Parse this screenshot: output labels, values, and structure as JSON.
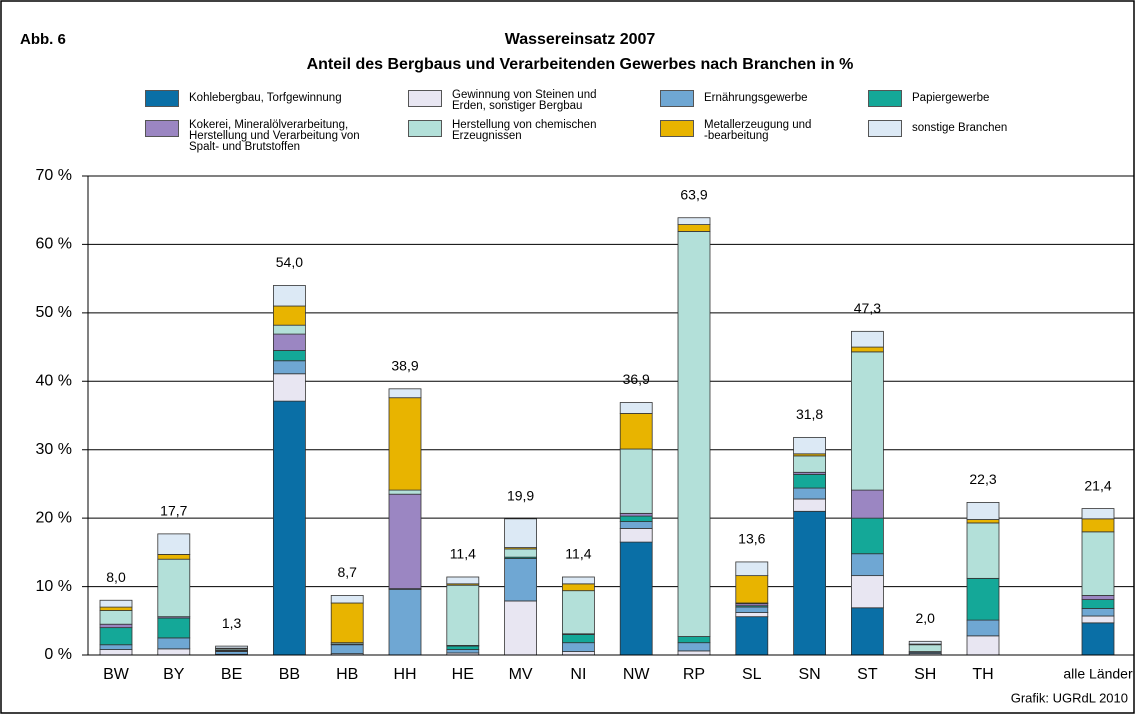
{
  "chart_data": {
    "type": "stacked_bar",
    "figure_label": "Abb. 6",
    "title": "Wassereinsatz 2007",
    "subtitle": "Anteil des Bergbaus und Verarbeitenden Gewerbes nach Branchen in %",
    "source": "Grafik: UGRdL 2010",
    "categories": [
      "BW",
      "BY",
      "BE",
      "BB",
      "HB",
      "HH",
      "HE",
      "MV",
      "NI",
      "NW",
      "RP",
      "SL",
      "SN",
      "ST",
      "SH",
      "TH",
      "alle Länder"
    ],
    "ylim": [
      0,
      70
    ],
    "yticks": [
      {
        "value": 0,
        "label": "0 %"
      },
      {
        "value": 10,
        "label": "10 %"
      },
      {
        "value": 20,
        "label": "20 %"
      },
      {
        "value": 30,
        "label": "30 %"
      },
      {
        "value": 40,
        "label": "40 %"
      },
      {
        "value": 50,
        "label": "50 %"
      },
      {
        "value": 60,
        "label": "60 %"
      },
      {
        "value": 70,
        "label": "70 %"
      }
    ],
    "grid": true,
    "series": [
      {
        "name": "Kohlebergbau, Torfgewinnung",
        "color": "#0a6fa6",
        "values": [
          0,
          0,
          0,
          37.1,
          0,
          0,
          0,
          0,
          0,
          16.5,
          0,
          5.6,
          21.0,
          6.9,
          0,
          0,
          4.7
        ]
      },
      {
        "name": "Gewinnung von Steinen und\nErden, sonstiger Bergbau",
        "color": "#e8e6f2",
        "values": [
          0.8,
          0.9,
          0.1,
          4.0,
          0.2,
          0,
          0.3,
          7.9,
          0.5,
          2.0,
          0.6,
          0.6,
          1.8,
          4.7,
          0.2,
          2.8,
          1.0
        ]
      },
      {
        "name": "Ernährungsgewerbe",
        "color": "#6fa7d3",
        "values": [
          0.7,
          1.6,
          0.4,
          1.9,
          1.3,
          9.6,
          0.5,
          6.2,
          1.3,
          1.0,
          1.2,
          0.8,
          1.6,
          3.2,
          0.2,
          2.3,
          1.1
        ]
      },
      {
        "name": "Papiergewerbe",
        "color": "#14a898",
        "values": [
          2.5,
          2.9,
          0.1,
          1.5,
          0.1,
          0.1,
          0.5,
          0.2,
          1.2,
          0.8,
          0.9,
          0.2,
          2.0,
          5.2,
          0.1,
          6.1,
          1.3
        ]
      },
      {
        "name": "Kokerei, Mineralölverarbeitung,\nHerstellung und Verarbeitung von\nSpalt- und Brutstoffen",
        "color": "#9b86c2",
        "values": [
          0.5,
          0.2,
          0.1,
          2.4,
          0,
          13.8,
          0.1,
          0,
          0.1,
          0.4,
          0,
          0.3,
          0.3,
          4.1,
          0,
          0,
          0.6
        ]
      },
      {
        "name": "Herstellung von chemischen\nErzeugnissen",
        "color": "#b3e0d9",
        "values": [
          2.0,
          8.4,
          0.2,
          1.3,
          0.2,
          0.6,
          8.8,
          1.2,
          6.3,
          9.4,
          59.2,
          0.1,
          2.4,
          20.2,
          1.0,
          8.1,
          9.3
        ]
      },
      {
        "name": "Metallerzeugung und\n-bearbeitung",
        "color": "#e8b400",
        "values": [
          0.5,
          0.7,
          0.1,
          2.8,
          5.8,
          13.5,
          0.2,
          0.2,
          1.0,
          5.2,
          1.0,
          4.0,
          0.3,
          0.7,
          0.1,
          0.5,
          1.9
        ]
      },
      {
        "name": "sonstige Branchen",
        "color": "#dce9f5",
        "values": [
          1.0,
          3.0,
          0.3,
          3.0,
          1.1,
          1.3,
          1.0,
          4.2,
          1.0,
          1.6,
          1.0,
          2.0,
          2.4,
          2.3,
          0.4,
          2.5,
          1.5
        ]
      }
    ],
    "totals": [
      8.0,
      17.7,
      1.3,
      54.0,
      8.7,
      38.9,
      11.4,
      19.9,
      11.4,
      36.9,
      63.9,
      13.6,
      31.8,
      47.3,
      2.0,
      22.3,
      21.4
    ],
    "total_labels": [
      "8,0",
      "17,7",
      "1,3",
      "54,0",
      "8,7",
      "38,9",
      "11,4",
      "19,9",
      "11,4",
      "36,9",
      "63,9",
      "13,6",
      "31,8",
      "47,3",
      "2,0",
      "22,3",
      "21,4"
    ]
  }
}
